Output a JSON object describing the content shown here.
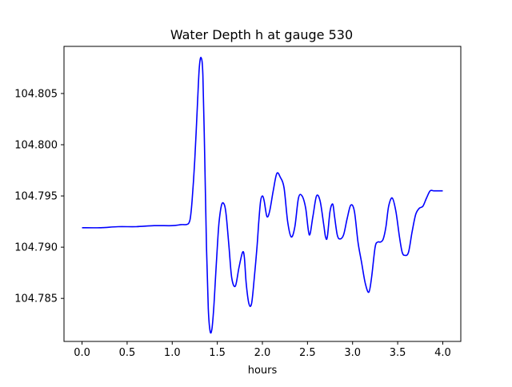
{
  "chart_data": {
    "type": "line",
    "title": "Water Depth h at gauge 530",
    "xlabel": "hours",
    "ylabel": "",
    "xlim": [
      -0.2,
      4.2
    ],
    "ylim": [
      104.7808,
      104.8096
    ],
    "grid": false,
    "x_ticks": [
      0.0,
      0.5,
      1.0,
      1.5,
      2.0,
      2.5,
      3.0,
      3.5,
      4.0
    ],
    "x_tick_labels": [
      "0.0",
      "0.5",
      "1.0",
      "1.5",
      "2.0",
      "2.5",
      "3.0",
      "3.5",
      "4.0"
    ],
    "y_ticks": [
      104.785,
      104.79,
      104.795,
      104.8,
      104.805
    ],
    "y_tick_labels": [
      "104.785",
      "104.790",
      "104.795",
      "104.800",
      "104.805"
    ],
    "series": [
      {
        "color": "#0000ff",
        "x": [
          0.0,
          0.2,
          0.4,
          0.6,
          0.8,
          1.0,
          1.1,
          1.15,
          1.18,
          1.2,
          1.22,
          1.25,
          1.28,
          1.3,
          1.32,
          1.34,
          1.36,
          1.38,
          1.4,
          1.42,
          1.44,
          1.46,
          1.48,
          1.5,
          1.52,
          1.55,
          1.58,
          1.6,
          1.63,
          1.66,
          1.7,
          1.74,
          1.78,
          1.8,
          1.82,
          1.85,
          1.88,
          1.91,
          1.94,
          1.96,
          1.98,
          2.0,
          2.02,
          2.05,
          2.08,
          2.12,
          2.16,
          2.2,
          2.24,
          2.28,
          2.32,
          2.36,
          2.4,
          2.44,
          2.48,
          2.52,
          2.56,
          2.6,
          2.64,
          2.68,
          2.7,
          2.72,
          2.75,
          2.78,
          2.8,
          2.83,
          2.86,
          2.9,
          2.94,
          2.98,
          3.02,
          3.06,
          3.1,
          3.14,
          3.18,
          3.21,
          3.25,
          3.28,
          3.31,
          3.34,
          3.37,
          3.4,
          3.44,
          3.48,
          3.52,
          3.55,
          3.58,
          3.62,
          3.66,
          3.7,
          3.74,
          3.78,
          3.82,
          3.86,
          3.9,
          3.94,
          3.98,
          4.0
        ],
        "y": [
          104.7919,
          104.7919,
          104.792,
          104.792,
          104.7921,
          104.7921,
          104.7922,
          104.7922,
          104.7923,
          104.7928,
          104.7945,
          104.7985,
          104.804,
          104.8075,
          104.8085,
          104.8068,
          104.799,
          104.79,
          104.784,
          104.7818,
          104.782,
          104.784,
          104.787,
          104.79,
          104.7925,
          104.7942,
          104.7941,
          104.793,
          104.79,
          104.787,
          104.7862,
          104.788,
          104.7895,
          104.789,
          104.7865,
          104.7845,
          104.7845,
          104.787,
          104.79,
          104.7925,
          104.7945,
          104.795,
          104.7945,
          104.793,
          104.7935,
          104.7955,
          104.7972,
          104.7968,
          104.7958,
          104.7925,
          104.791,
          104.792,
          104.7948,
          104.795,
          104.7938,
          104.7912,
          104.793,
          104.795,
          104.7945,
          104.7922,
          104.791,
          104.791,
          104.7935,
          104.7942,
          104.793,
          104.7912,
          104.7908,
          104.7912,
          104.7928,
          104.7941,
          104.7935,
          104.7905,
          104.7885,
          104.7865,
          104.7856,
          104.787,
          104.79,
          104.7905,
          104.7905,
          104.7908,
          104.792,
          104.794,
          104.7948,
          104.7935,
          104.791,
          104.7895,
          104.7892,
          104.7895,
          104.7915,
          104.7932,
          104.7938,
          104.794,
          104.7948,
          104.7955,
          104.7955,
          104.7955,
          104.7955,
          104.7955
        ]
      }
    ]
  }
}
